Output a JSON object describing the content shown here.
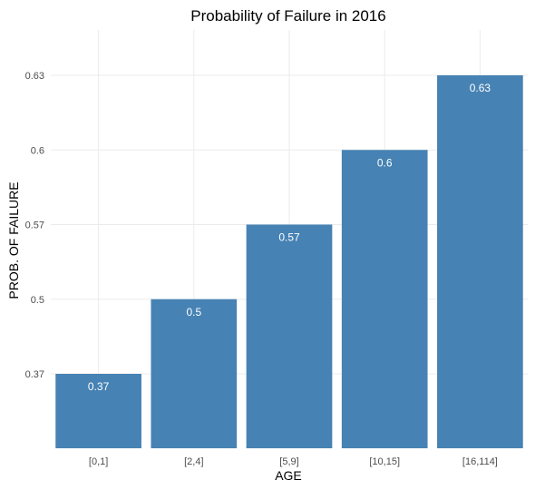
{
  "chart_data": {
    "type": "bar",
    "title": "Probability of Failure in 2016",
    "xlabel": "AGE",
    "ylabel": "PROB. OF FAILURE",
    "categories": [
      "[0,1]",
      "[2,4]",
      "[5,9]",
      "[10,15]",
      "[16,114]"
    ],
    "values": [
      0.37,
      0.5,
      0.57,
      0.6,
      0.63
    ],
    "value_labels": [
      "0.37",
      "0.5",
      "0.57",
      "0.6",
      "0.63"
    ],
    "y_ticks": [
      "0.37",
      "0.5",
      "0.57",
      "0.6",
      "0.63"
    ],
    "bar_color": "#4682b4",
    "grid": true,
    "legend": "none"
  }
}
